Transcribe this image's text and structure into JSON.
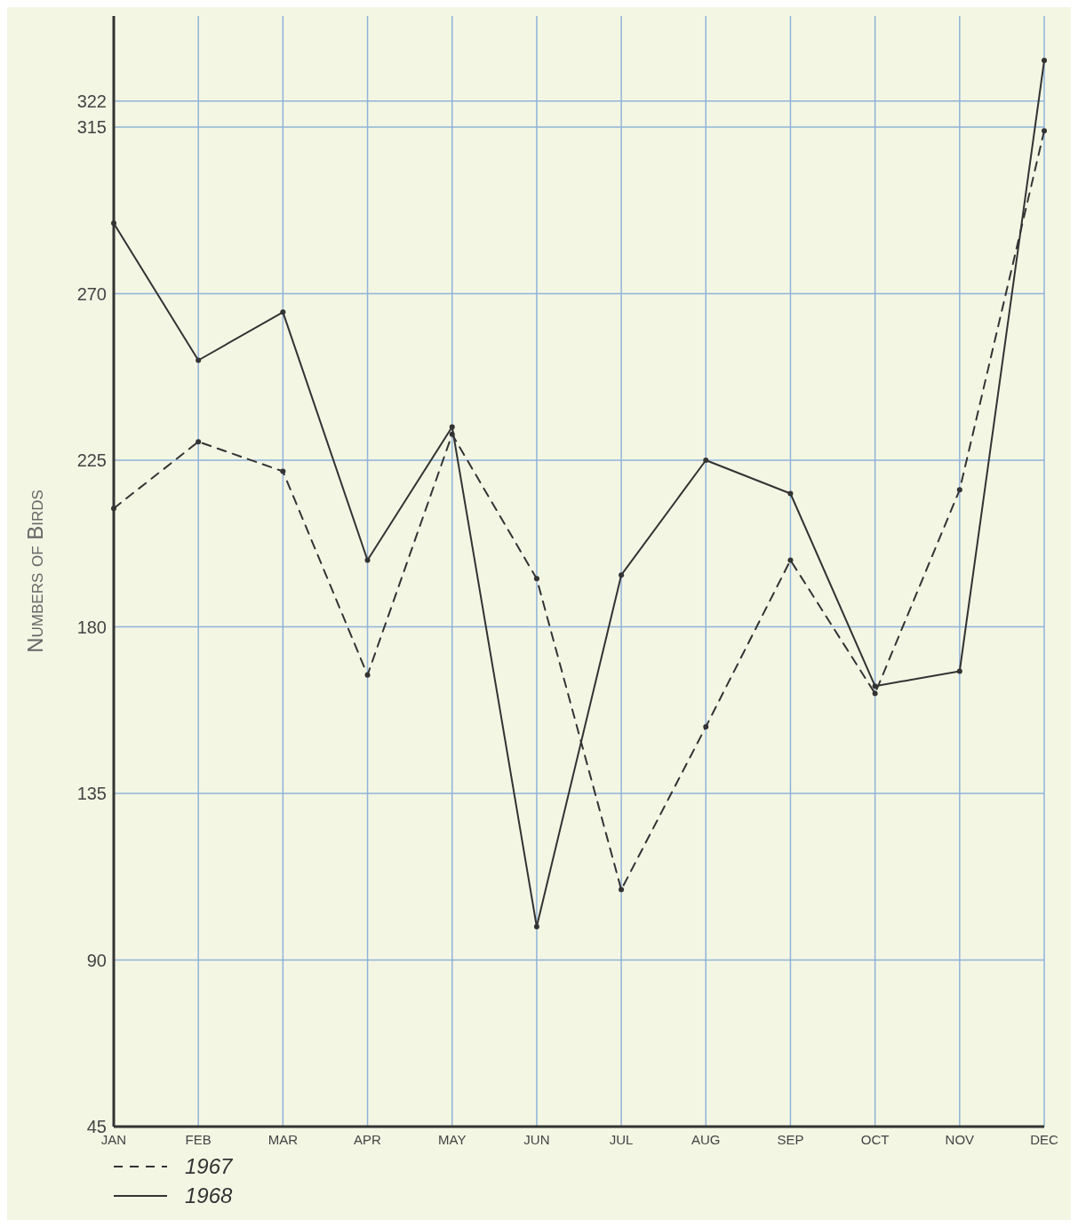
{
  "chart_data": {
    "type": "line",
    "ylabel": "Numbers of Birds",
    "categories": [
      "JAN",
      "FEB",
      "MAR",
      "APR",
      "MAY",
      "JUN",
      "JUL",
      "AUG",
      "SEP",
      "OCT",
      "NOV",
      "DEC"
    ],
    "series": [
      {
        "name": "1967",
        "color": "#333333",
        "line_style": "dashed",
        "values": [
          212,
          230,
          222,
          167,
          232,
          193,
          109,
          153,
          198,
          162,
          217,
          314
        ]
      },
      {
        "name": "1968",
        "color": "#333333",
        "line_style": "solid",
        "values": [
          289,
          252,
          265,
          198,
          234,
          99,
          194,
          225,
          216,
          164,
          168,
          333
        ]
      }
    ],
    "ylim": [
      45,
      345
    ],
    "yticks": [
      45,
      90,
      135,
      180,
      225,
      270,
      315,
      322
    ],
    "grid": true,
    "legend": "bottom left",
    "marker": "circle"
  }
}
